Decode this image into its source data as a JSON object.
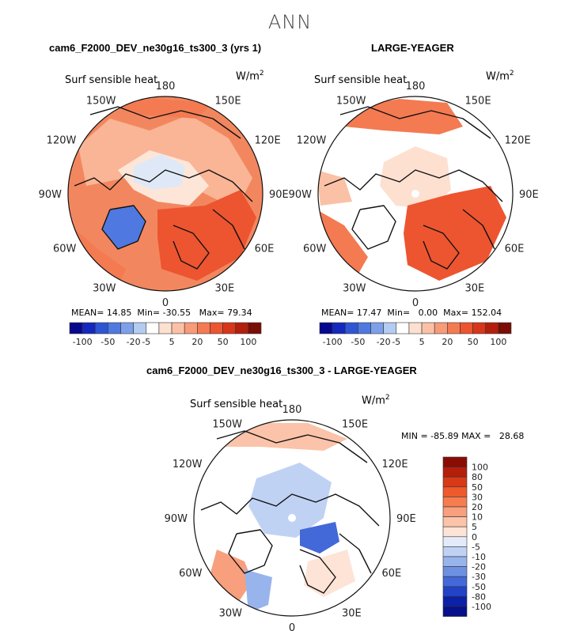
{
  "season": "ANN",
  "panels": [
    {
      "id": "model",
      "title": "cam6_F2000_DEV_ne30g16_ts300_3 (yrs 1)",
      "variable": "Surf sensible heat",
      "units_base": "W/m",
      "units_exp": "2",
      "stats": {
        "mean_label": "MEAN=",
        "mean": "14.85",
        "min_label": "Min=",
        "min": "-30.55",
        "max_label": "Max=",
        "max": "79.34"
      },
      "colorbar_labels": [
        "-100",
        "-50",
        "-20",
        "-5",
        "5",
        "20",
        "50",
        "100"
      ]
    },
    {
      "id": "obs",
      "title": "LARGE-YEAGER",
      "variable": "Surf sensible heat",
      "units_base": "W/m",
      "units_exp": "2",
      "stats": {
        "mean_label": "MEAN=",
        "mean": "17.47",
        "min_label": "Min=",
        "min": "0.00",
        "max_label": "Max=",
        "max": "152.04"
      },
      "colorbar_labels": [
        "-100",
        "-50",
        "-20",
        "-5",
        "5",
        "20",
        "50",
        "100"
      ]
    },
    {
      "id": "diff",
      "title": "cam6_F2000_DEV_ne30g16_ts300_3 - LARGE-YEAGER",
      "variable": "Surf sensible heat",
      "units_base": "W/m",
      "units_exp": "2",
      "minmax": "MIN = -85.89 MAX =   28.68",
      "colorbar_labels": [
        "100",
        "80",
        "50",
        "30",
        "20",
        "10",
        "5",
        "0",
        "-5",
        "-10",
        "-20",
        "-30",
        "-50",
        "-80",
        "-100"
      ]
    }
  ],
  "longitude_labels": {
    "top": "180",
    "bottom": "0",
    "upper_left": "150W",
    "upper_right": "150E",
    "left_high": "120W",
    "right_high": "120E",
    "left_mid": "90W",
    "right_mid": "90E",
    "left_low": "60W",
    "right_low": "60E",
    "lower_left": "30W",
    "lower_right": "30E"
  },
  "colors": {
    "main_scale": [
      "#08088f",
      "#1428c0",
      "#2e56d4",
      "#4f79e0",
      "#7ea0ea",
      "#b4cbf2",
      "#ffffff",
      "#fde0d0",
      "#fbc1a6",
      "#f89b78",
      "#f47a52",
      "#ec5530",
      "#d8361a",
      "#b21f0c",
      "#7a0d04"
    ],
    "diff_scale_top_to_bottom": [
      "#8a0d05",
      "#b61e0c",
      "#d83a18",
      "#ee5a2c",
      "#f67d4f",
      "#f89f7d",
      "#fbc3a9",
      "#fde4d6",
      "#e3ebfa",
      "#c0d2f4",
      "#98b4ec",
      "#6d90e2",
      "#4368d8",
      "#2243c6",
      "#0c20a8",
      "#06108a"
    ]
  }
}
